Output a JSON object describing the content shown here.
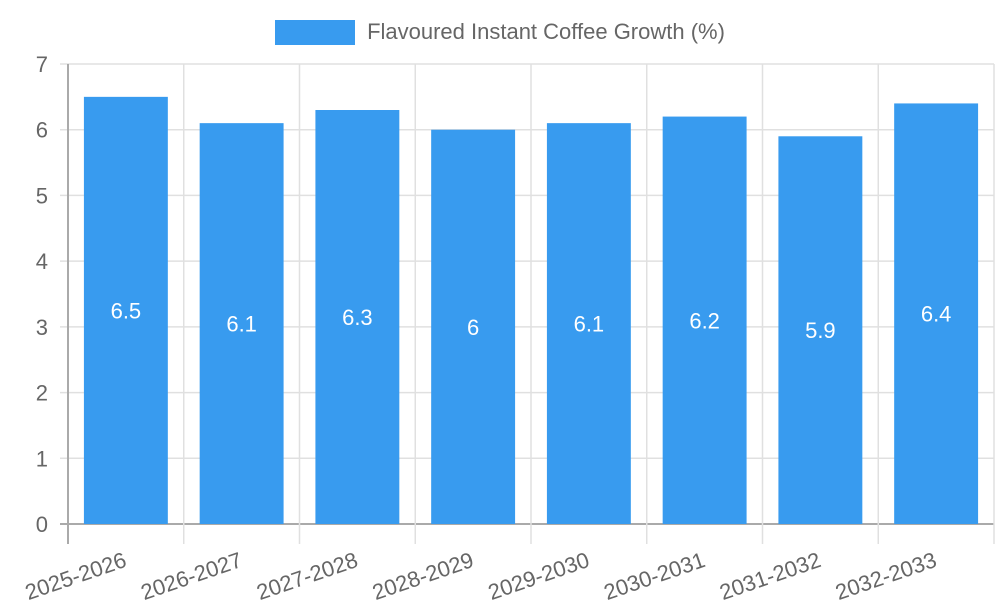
{
  "chart_data": {
    "type": "bar",
    "title": "",
    "categories": [
      "2025-2026",
      "2026-2027",
      "2027-2028",
      "2028-2029",
      "2029-2030",
      "2030-2031",
      "2031-2032",
      "2032-2033"
    ],
    "series": [
      {
        "name": "Flavoured Instant Coffee Growth (%)",
        "values": [
          6.5,
          6.1,
          6.3,
          6.0,
          6.1,
          6.2,
          5.9,
          6.4
        ],
        "color": "#389bef"
      }
    ],
    "data_labels": [
      "6.5",
      "6.1",
      "6.3",
      "6",
      "6.1",
      "6.2",
      "5.9",
      "6.4"
    ],
    "xlabel": "",
    "ylabel": "",
    "ylim": [
      0,
      7
    ],
    "yticks": [
      0,
      1,
      2,
      3,
      4,
      5,
      6,
      7
    ],
    "grid": true,
    "legend_position": "top"
  },
  "legend": {
    "label": "Flavoured Instant Coffee Growth (%)",
    "color": "#389bef"
  }
}
